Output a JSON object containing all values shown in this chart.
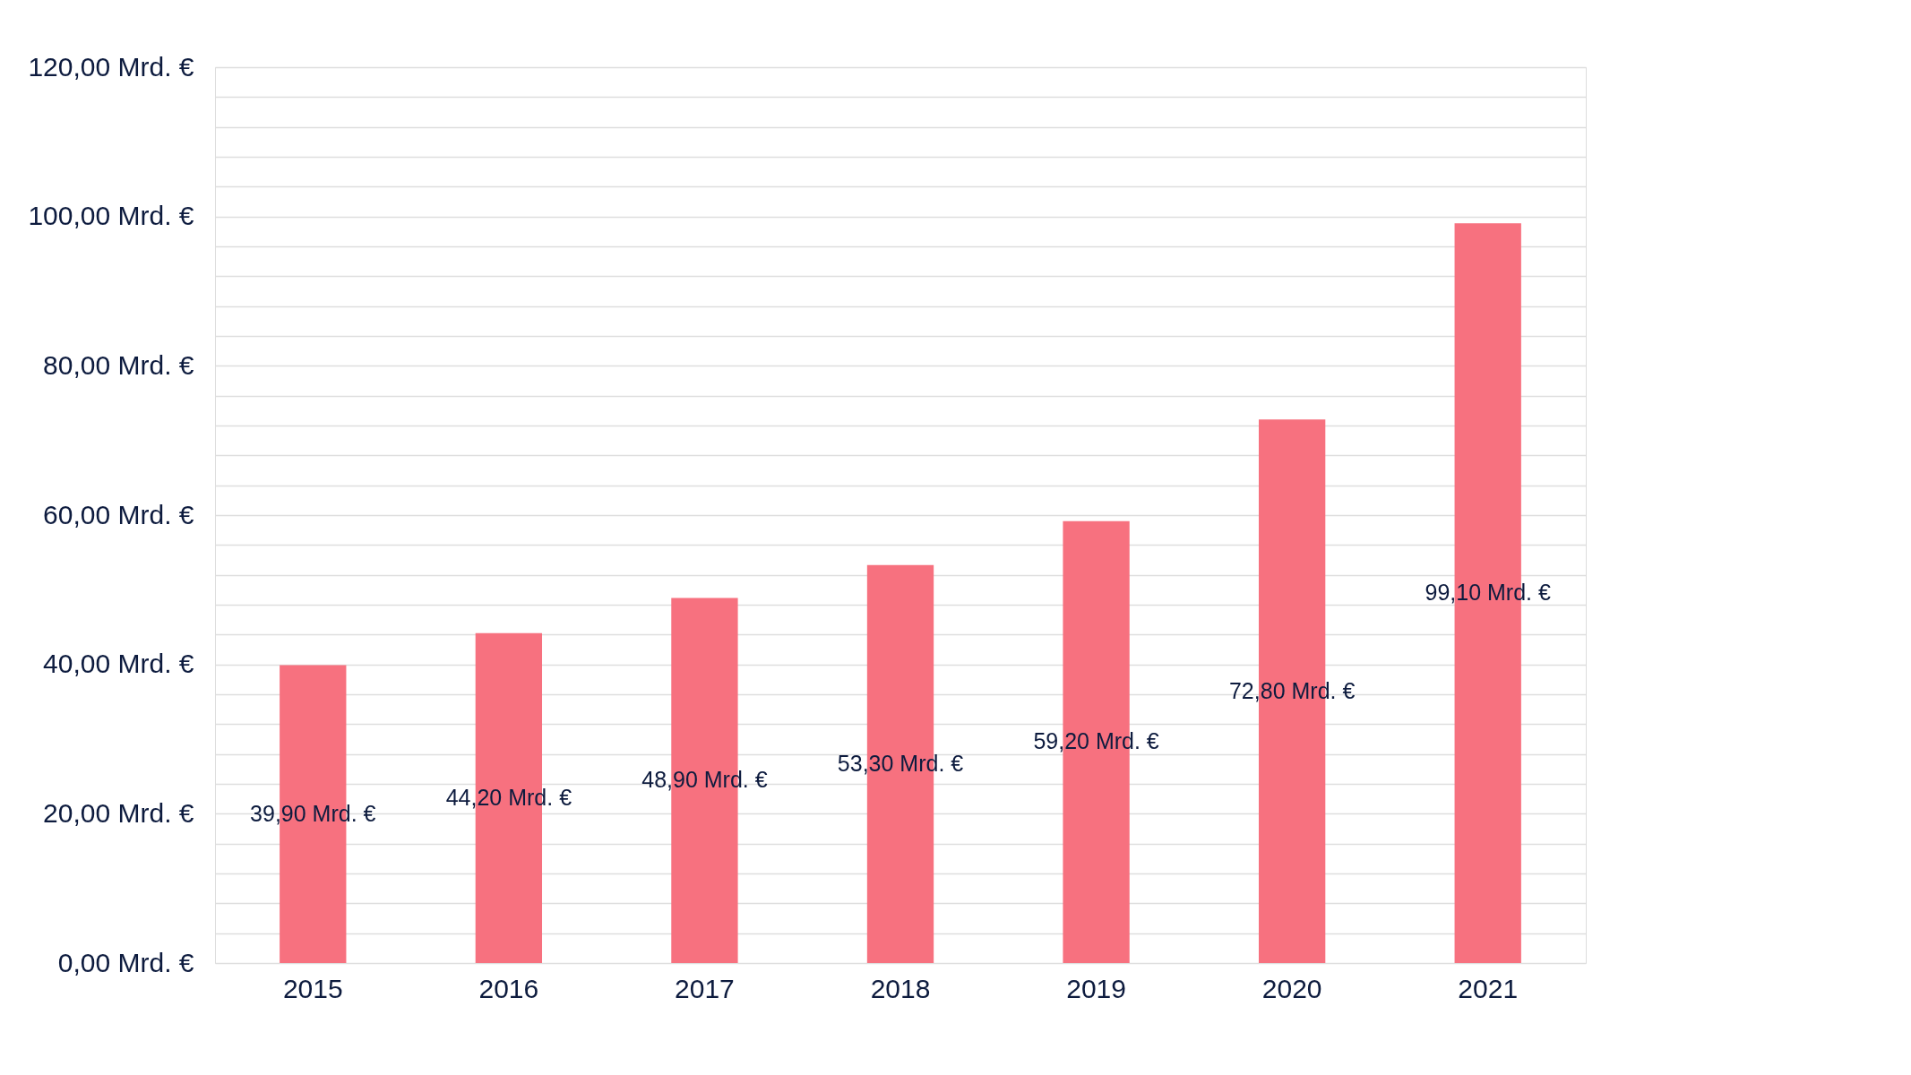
{
  "chart_data": {
    "type": "bar",
    "categories": [
      "2015",
      "2016",
      "2017",
      "2018",
      "2019",
      "2020",
      "2021"
    ],
    "values": [
      39.9,
      44.2,
      48.9,
      53.3,
      59.2,
      72.8,
      99.1
    ],
    "value_labels": [
      "39,90 Mrd. €",
      "44,20 Mrd. €",
      "48,90 Mrd. €",
      "53,30 Mrd. €",
      "59,20 Mrd. €",
      "72,80 Mrd. €",
      "99,10 Mrd. €"
    ],
    "color": "#f7717f",
    "ylim": [
      0,
      120
    ],
    "yticks": [
      {
        "value": 0,
        "label": "0,00 Mrd. €"
      },
      {
        "value": 4,
        "label": null
      },
      {
        "value": 8,
        "label": null
      },
      {
        "value": 12,
        "label": null
      },
      {
        "value": 16,
        "label": null
      },
      {
        "value": 20,
        "label": "20,00 Mrd. €"
      },
      {
        "value": 24,
        "label": null
      },
      {
        "value": 28,
        "label": null
      },
      {
        "value": 32,
        "label": null
      },
      {
        "value": 36,
        "label": null
      },
      {
        "value": 40,
        "label": "40,00 Mrd. €"
      },
      {
        "value": 44,
        "label": null
      },
      {
        "value": 48,
        "label": null
      },
      {
        "value": 52,
        "label": null
      },
      {
        "value": 56,
        "label": null
      },
      {
        "value": 60,
        "label": "60,00 Mrd. €"
      },
      {
        "value": 64,
        "label": null
      },
      {
        "value": 68,
        "label": null
      },
      {
        "value": 72,
        "label": null
      },
      {
        "value": 76,
        "label": null
      },
      {
        "value": 80,
        "label": "80,00 Mrd. €"
      },
      {
        "value": 84,
        "label": null
      },
      {
        "value": 88,
        "label": null
      },
      {
        "value": 92,
        "label": null
      },
      {
        "value": 96,
        "label": null
      },
      {
        "value": 100,
        "label": "100,00 Mrd. €"
      },
      {
        "value": 104,
        "label": null
      },
      {
        "value": 108,
        "label": null
      },
      {
        "value": 112,
        "label": null
      },
      {
        "value": 116,
        "label": null
      },
      {
        "value": 120,
        "label": "120,00 Mrd. €"
      }
    ],
    "grid": "y",
    "legend": false
  }
}
